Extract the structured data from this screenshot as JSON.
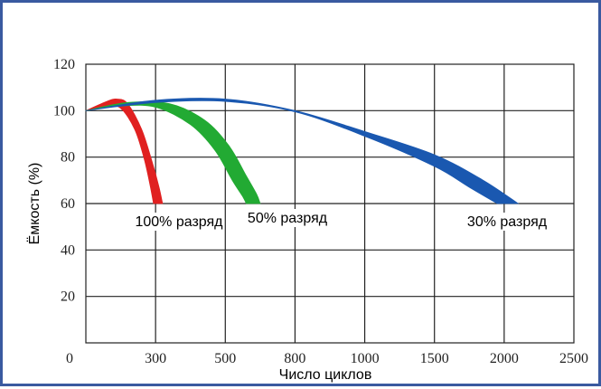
{
  "chart_data": {
    "type": "area",
    "title": "",
    "xlabel": "Число циклов",
    "ylabel": "Ёмкость (%)",
    "ylim": [
      0,
      120
    ],
    "yticks": [
      20,
      40,
      60,
      80,
      100,
      120
    ],
    "y_origin_label": "0",
    "x_categories": [
      "0",
      "300",
      "500",
      "800",
      "1000",
      "1500",
      "2000",
      "2500"
    ],
    "grid": true,
    "series": [
      {
        "name": "100% разряд",
        "color": "#e02020",
        "upper": [
          [
            0,
            100
          ],
          [
            0.3,
            104
          ],
          [
            0.45,
            105
          ],
          [
            0.6,
            103
          ],
          [
            0.8,
            92
          ],
          [
            0.95,
            78
          ],
          [
            1.05,
            67
          ],
          [
            1.1,
            60
          ]
        ],
        "lower": [
          [
            0,
            100
          ],
          [
            0.3,
            102
          ],
          [
            0.5,
            101
          ],
          [
            0.7,
            92
          ],
          [
            0.83,
            80
          ],
          [
            0.92,
            68
          ],
          [
            0.97,
            60
          ]
        ]
      },
      {
        "name": "50% разряд",
        "color": "#22aa33",
        "upper": [
          [
            0,
            100
          ],
          [
            0.6,
            103.5
          ],
          [
            1.2,
            103
          ],
          [
            1.7,
            96
          ],
          [
            2.05,
            85
          ],
          [
            2.3,
            72
          ],
          [
            2.45,
            64
          ],
          [
            2.5,
            60
          ]
        ],
        "lower": [
          [
            0,
            100
          ],
          [
            0.5,
            102
          ],
          [
            1.0,
            101.5
          ],
          [
            1.5,
            94
          ],
          [
            1.85,
            83
          ],
          [
            2.1,
            70
          ],
          [
            2.25,
            63
          ],
          [
            2.3,
            60
          ]
        ]
      },
      {
        "name": "30% разряд",
        "color": "#1a58b0",
        "upper": [
          [
            0,
            100
          ],
          [
            1.0,
            104.5
          ],
          [
            2.0,
            105
          ],
          [
            3.0,
            100
          ],
          [
            4.0,
            91
          ],
          [
            5.0,
            81
          ],
          [
            5.7,
            70
          ],
          [
            6.2,
            60
          ]
        ],
        "lower": [
          [
            0,
            100
          ],
          [
            1.0,
            103.5
          ],
          [
            2.0,
            104
          ],
          [
            3.0,
            99.5
          ],
          [
            4.0,
            89
          ],
          [
            5.0,
            76
          ],
          [
            5.5,
            67
          ],
          [
            5.9,
            60
          ]
        ]
      }
    ]
  }
}
